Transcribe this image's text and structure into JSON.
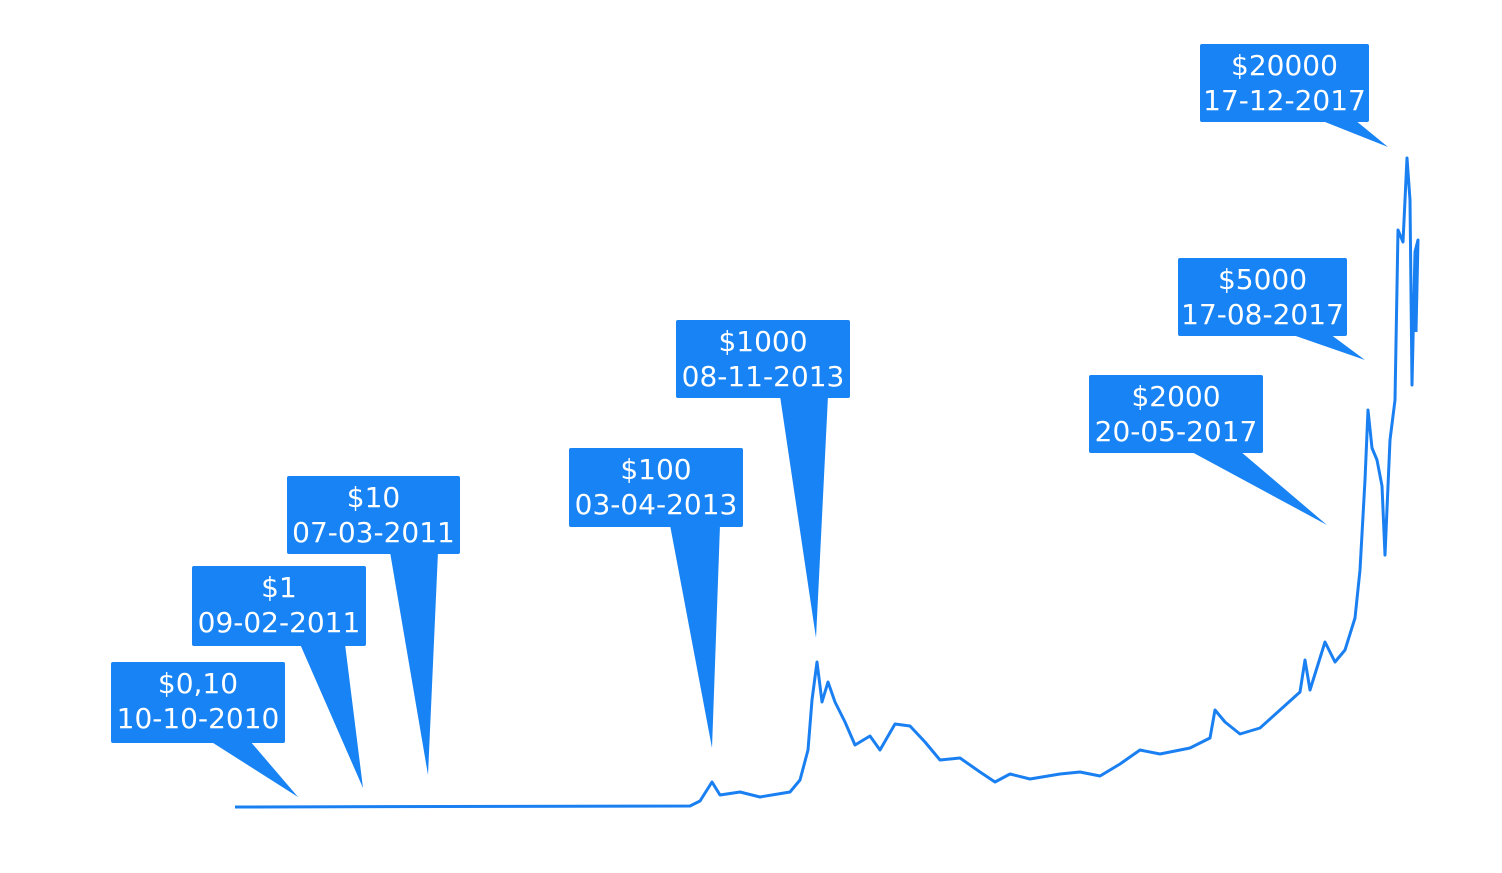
{
  "chart_data": {
    "type": "line",
    "color": "#1a80f2",
    "annotations": [
      {
        "value": 0.1,
        "value_label": "$0,10",
        "date": "10-10-2010"
      },
      {
        "value": 1,
        "value_label": "$1",
        "date": "09-02-2011"
      },
      {
        "value": 10,
        "value_label": "$10",
        "date": "07-03-2011"
      },
      {
        "value": 100,
        "value_label": "$100",
        "date": "03-04-2013"
      },
      {
        "value": 1000,
        "value_label": "$1000",
        "date": "08-11-2013"
      },
      {
        "value": 2000,
        "value_label": "$2000",
        "date": "20-05-2017"
      },
      {
        "value": 5000,
        "value_label": "$5000",
        "date": "17-08-2017"
      },
      {
        "value": 20000,
        "value_label": "$20000",
        "date": "17-12-2017"
      }
    ]
  }
}
